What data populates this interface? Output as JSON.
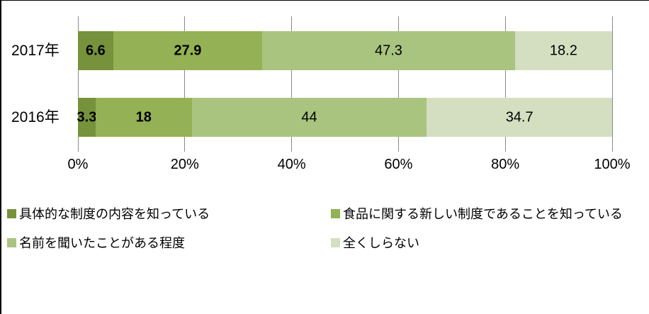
{
  "chart_data": {
    "type": "bar",
    "orientation": "horizontal",
    "stacked": true,
    "unit": "%",
    "categories": [
      "2017年",
      "2016年"
    ],
    "series": [
      {
        "name": "具体的な制度の内容を知っている",
        "color": "#76923C",
        "values": [
          6.6,
          3.3
        ],
        "bold_labels": true
      },
      {
        "name": "食品に関する新しい制度であることを知っている",
        "color": "#94B155",
        "values": [
          27.9,
          18
        ],
        "bold_labels": true
      },
      {
        "name": "名前を聞いたことがある程度",
        "color": "#A9C47F",
        "values": [
          47.3,
          44
        ],
        "bold_labels": false
      },
      {
        "name": "全くしらない",
        "color": "#D3DFC0",
        "values": [
          18.2,
          34.7
        ],
        "bold_labels": false
      }
    ],
    "x_ticks": [
      "0%",
      "20%",
      "40%",
      "60%",
      "80%",
      "100%"
    ],
    "xlim": [
      0,
      100
    ],
    "grid": true,
    "legend_position": "bottom",
    "legend_columns": 2
  },
  "layout_colors": {
    "gridline": "#8A8A8A",
    "text": "#000000",
    "background": "#FFFFFF",
    "border": "#000000"
  }
}
